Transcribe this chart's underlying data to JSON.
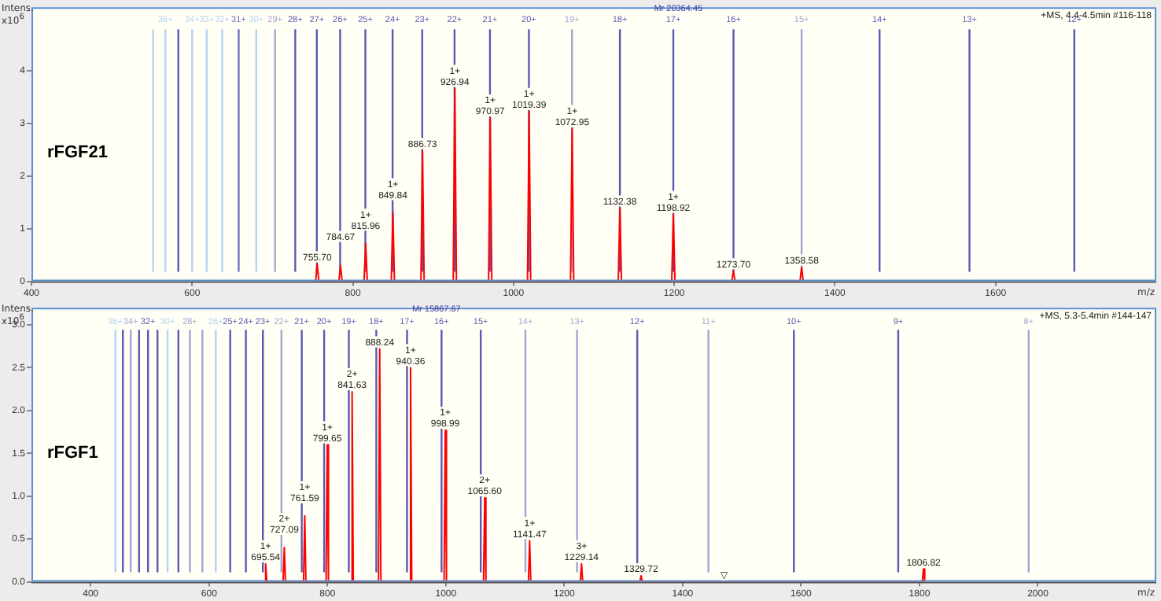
{
  "chart_data": [
    {
      "type": "line",
      "title": "rFGF21",
      "ylabel": "Intens. x10$^{6}$",
      "xlabel": "m/z",
      "xlim": [
        400,
        1800
      ],
      "xticks": [
        400,
        600,
        800,
        1000,
        1200,
        1400,
        1600
      ],
      "ylim": [
        0,
        5.2
      ],
      "yticks": [
        0,
        1,
        2,
        3,
        4
      ],
      "grid": false,
      "legend": false,
      "marker": "none",
      "line_style": "solid",
      "series": [
        {
          "color": "#ff0000",
          "x": [
            753.7,
            755.7,
            757.7,
            782.67,
            784.67,
            786.67,
            813.96,
            815.96,
            817.96,
            847.84,
            849.84,
            851.84,
            884.73,
            886.73,
            888.73,
            924.94,
            926.94,
            928.94,
            968.97,
            970.97,
            972.97,
            1017.39,
            1019.39,
            1021.39,
            1070.95,
            1072.95,
            1074.95,
            1130.38,
            1132.38,
            1134.38,
            1196.92,
            1198.92,
            1200.92,
            1271.7,
            1273.7,
            1275.7,
            1356.58,
            1358.58,
            1360.58
          ],
          "values": [
            0,
            0.33,
            0,
            0,
            0.3,
            0,
            0,
            0.72,
            0,
            0,
            1.3,
            0,
            0,
            2.48,
            0,
            0,
            3.66,
            0,
            0,
            3.1,
            0,
            0,
            3.22,
            0,
            0,
            2.9,
            0,
            0,
            1.39,
            0,
            0,
            1.27,
            0,
            0,
            0.2,
            0,
            0,
            0.27,
            0
          ]
        }
      ],
      "annotations": [
        "+MS, 4.4-4.5min #116-118",
        "Mr 20364.45",
        {
          "text": "755.70",
          "x": 755.7,
          "y": 0.33
        },
        {
          "text": "784.67",
          "x": 784.67,
          "y": 0.3
        },
        {
          "text": "1+\n815.96",
          "x": 815.96,
          "y": 0.72
        },
        {
          "text": "1+\n849.84",
          "x": 849.84,
          "y": 1.3
        },
        {
          "text": "886.73",
          "x": 886.73,
          "y": 2.48
        },
        {
          "text": "1+\n926.94",
          "x": 926.94,
          "y": 3.66
        },
        {
          "text": "1+\n970.97",
          "x": 970.97,
          "y": 3.1
        },
        {
          "text": "1+\n1019.39",
          "x": 1019.39,
          "y": 3.22
        },
        {
          "text": "1+\n1072.95",
          "x": 1072.95,
          "y": 2.9
        },
        {
          "text": "1132.38",
          "x": 1132.38,
          "y": 1.39
        },
        {
          "text": "1+\n1198.92",
          "x": 1198.92,
          "y": 1.27
        },
        {
          "text": "1273.70",
          "x": 1273.7,
          "y": 0.2
        },
        {
          "text": "1358.58",
          "x": 1358.58,
          "y": 0.27
        },
        {
          "text": "36+",
          "x": 566.7,
          "y": 4.85
        },
        {
          "text": "34+",
          "x": 600.0,
          "y": 4.85
        },
        {
          "text": "33+",
          "x": 618.1,
          "y": 4.85
        },
        {
          "text": "32+",
          "x": 637.4,
          "y": 4.85
        },
        {
          "text": "31+",
          "x": 657.9,
          "y": 4.85
        },
        {
          "text": "30+",
          "x": 679.8,
          "y": 4.85
        },
        {
          "text": "29+",
          "x": 703.2,
          "y": 4.85
        },
        {
          "text": "28+",
          "x": 728.3,
          "y": 4.85
        },
        {
          "text": "27+",
          "x": 755.2,
          "y": 4.85
        },
        {
          "text": "26+",
          "x": 784.2,
          "y": 4.85
        },
        {
          "text": "25+",
          "x": 815.6,
          "y": 4.85
        },
        {
          "text": "24+",
          "x": 849.5,
          "y": 4.85
        },
        {
          "text": "23+",
          "x": 886.4,
          "y": 4.85
        },
        {
          "text": "22+",
          "x": 926.6,
          "y": 4.85
        },
        {
          "text": "21+",
          "x": 970.7,
          "y": 4.85
        },
        {
          "text": "20+",
          "x": 1019.2,
          "y": 4.85
        },
        {
          "text": "19+",
          "x": 1072.8,
          "y": 4.85
        },
        {
          "text": "18+",
          "x": 1132.4,
          "y": 4.85
        },
        {
          "text": "17+",
          "x": 1198.9,
          "y": 4.85
        },
        {
          "text": "16+",
          "x": 1273.8,
          "y": 4.85
        },
        {
          "text": "15+",
          "x": 1358.6,
          "y": 4.85
        },
        {
          "text": "14+",
          "x": 1455.6,
          "y": 4.85
        },
        {
          "text": "13+",
          "x": 1567.5,
          "y": 4.85
        },
        {
          "text": "12+",
          "x": 1698.0,
          "y": 4.85
        }
      ],
      "ref_lines": [
        {
          "axis": "x",
          "value": 551.4,
          "color": "#b4d4f2"
        },
        {
          "axis": "x",
          "value": 566.7,
          "color": "#b4d4f2"
        },
        {
          "axis": "x",
          "value": 582.8,
          "color": "#5a5ab4"
        },
        {
          "axis": "x",
          "value": 600.0,
          "color": "#b4d4f2"
        },
        {
          "axis": "x",
          "value": 618.1,
          "color": "#b4d4f2"
        },
        {
          "axis": "x",
          "value": 637.4,
          "color": "#b4d4f2"
        },
        {
          "axis": "x",
          "value": 657.9,
          "color": "#7070c0"
        },
        {
          "axis": "x",
          "value": 679.8,
          "color": "#b4d4f2"
        },
        {
          "axis": "x",
          "value": 703.2,
          "color": "#a4a4d4"
        },
        {
          "axis": "x",
          "value": 728.3,
          "color": "#5a5ab4"
        },
        {
          "axis": "x",
          "value": 755.2,
          "color": "#5a5ab4"
        },
        {
          "axis": "x",
          "value": 784.2,
          "color": "#5a5ab4"
        },
        {
          "axis": "x",
          "value": 815.6,
          "color": "#5a5ab4"
        },
        {
          "axis": "x",
          "value": 849.5,
          "color": "#5a5ab4"
        },
        {
          "axis": "x",
          "value": 886.4,
          "color": "#5a5ab4"
        },
        {
          "axis": "x",
          "value": 926.6,
          "color": "#5a5ab4"
        },
        {
          "axis": "x",
          "value": 970.7,
          "color": "#5a5ab4"
        },
        {
          "axis": "x",
          "value": 1019.2,
          "color": "#5a5ab4"
        },
        {
          "axis": "x",
          "value": 1072.8,
          "color": "#a4a4d4"
        },
        {
          "axis": "x",
          "value": 1132.4,
          "color": "#5a5ab4"
        },
        {
          "axis": "x",
          "value": 1198.9,
          "color": "#5a5ab4"
        },
        {
          "axis": "x",
          "value": 1273.8,
          "color": "#5a5ab4"
        },
        {
          "axis": "x",
          "value": 1358.6,
          "color": "#a4a4d4"
        },
        {
          "axis": "x",
          "value": 1455.6,
          "color": "#5a5ab4"
        },
        {
          "axis": "x",
          "value": 1567.5,
          "color": "#5a5ab4"
        },
        {
          "axis": "x",
          "value": 1698.0,
          "color": "#5a5ab4"
        }
      ]
    },
    {
      "type": "line",
      "title": "rFGF1",
      "ylabel": "Intens. x10$^{6}$",
      "xlabel": "m/z",
      "xlim": [
        300,
        2200
      ],
      "xticks": [
        400,
        600,
        800,
        1000,
        1200,
        1400,
        1600,
        1800,
        2000
      ],
      "ylim": [
        0,
        3.2
      ],
      "yticks": [
        {
          "value": 0,
          "label": "0.0"
        },
        0.5,
        {
          "value": 1,
          "label": "1.0"
        },
        1.5,
        {
          "value": 2,
          "label": "2.0"
        },
        2.5,
        {
          "value": 3,
          "label": "3.0"
        }
      ],
      "grid": false,
      "legend": false,
      "marker": "none",
      "line_style": "solid",
      "series": [
        {
          "color": "#ff0000",
          "x": [
            693.54,
            695.54,
            697.54,
            725.09,
            727.09,
            729.09,
            759.59,
            761.59,
            763.59,
            797.65,
            799.65,
            801.65,
            839.63,
            841.63,
            843.63,
            886.24,
            888.24,
            890.24,
            938.36,
            940.36,
            942.36,
            996.99,
            998.99,
            1000.99,
            1063.6,
            1065.6,
            1067.6,
            1139.47,
            1141.47,
            1143.47,
            1227.14,
            1229.14,
            1231.14,
            1327.72,
            1329.72,
            1331.72,
            1804.82,
            1806.82,
            1808.82
          ],
          "values": [
            0,
            0.21,
            0,
            0,
            0.4,
            0,
            0,
            0.77,
            0,
            0,
            1.6,
            0,
            0,
            2.22,
            0,
            0,
            2.72,
            0,
            0,
            2.5,
            0,
            0,
            1.77,
            0,
            0,
            0.98,
            0,
            0,
            0.48,
            0,
            0,
            0.21,
            0,
            0,
            0.07,
            0,
            0,
            0.15,
            0
          ]
        }
      ],
      "annotations": [
        "+MS, 5.3-5.4min #144-147",
        "Mr 15867.67",
        {
          "text": "1+\n695.54",
          "x": 695.54,
          "y": 0.21
        },
        {
          "text": "2+\n727.09",
          "x": 727.09,
          "y": 0.4
        },
        {
          "text": "1+\n761.59",
          "x": 761.59,
          "y": 0.77
        },
        {
          "text": "1+\n799.65",
          "x": 799.65,
          "y": 1.6
        },
        {
          "text": "2+\n841.63",
          "x": 841.63,
          "y": 2.22
        },
        {
          "text": "888.24",
          "x": 888.24,
          "y": 2.72
        },
        {
          "text": "1+\n940.36",
          "x": 940.36,
          "y": 2.5
        },
        {
          "text": "1+\n998.99",
          "x": 998.99,
          "y": 1.77
        },
        {
          "text": "2+\n1065.60",
          "x": 1065.6,
          "y": 0.98
        },
        {
          "text": "1+\n1141.47",
          "x": 1141.47,
          "y": 0.48
        },
        {
          "text": "3+\n1229.14",
          "x": 1229.14,
          "y": 0.21
        },
        {
          "text": "1329.72",
          "x": 1329.72,
          "y": 0.07
        },
        {
          "text": "1806.82",
          "x": 1806.82,
          "y": 0.15
        },
        {
          "text": "▽",
          "x": 1470,
          "y": 0
        },
        {
          "text": "36+",
          "x": 441.8,
          "y": 2.97
        },
        {
          "text": "34+",
          "x": 467.7,
          "y": 2.97
        },
        {
          "text": "32+",
          "x": 496.9,
          "y": 2.97
        },
        {
          "text": "30+",
          "x": 529.9,
          "y": 2.97
        },
        {
          "text": "28+",
          "x": 567.7,
          "y": 2.97
        },
        {
          "text": "26+",
          "x": 611.3,
          "y": 2.97
        },
        {
          "text": "25+",
          "x": 635.7,
          "y": 2.97
        },
        {
          "text": "24+",
          "x": 662.2,
          "y": 2.97
        },
        {
          "text": "23+",
          "x": 690.9,
          "y": 2.97
        },
        {
          "text": "22+",
          "x": 722.3,
          "y": 2.97
        },
        {
          "text": "21+",
          "x": 756.6,
          "y": 2.97
        },
        {
          "text": "20+",
          "x": 794.4,
          "y": 2.97
        },
        {
          "text": "19+",
          "x": 836.1,
          "y": 2.97
        },
        {
          "text": "18+",
          "x": 882.5,
          "y": 2.97
        },
        {
          "text": "17+",
          "x": 934.4,
          "y": 2.97
        },
        {
          "text": "16+",
          "x": 992.7,
          "y": 2.97
        },
        {
          "text": "15+",
          "x": 1058.9,
          "y": 2.97
        },
        {
          "text": "14+",
          "x": 1134.4,
          "y": 2.97
        },
        {
          "text": "13+",
          "x": 1221.6,
          "y": 2.97
        },
        {
          "text": "12+",
          "x": 1323.3,
          "y": 2.97
        },
        {
          "text": "11+",
          "x": 1443.5,
          "y": 2.97
        },
        {
          "text": "10+",
          "x": 1587.8,
          "y": 2.97
        },
        {
          "text": "9+",
          "x": 1764.1,
          "y": 2.97
        },
        {
          "text": "8+",
          "x": 1984.5,
          "y": 2.97
        }
      ],
      "ref_lines": [
        {
          "axis": "x",
          "value": 441.8,
          "color": "#b4d4f2"
        },
        {
          "axis": "x",
          "value": 454.4,
          "color": "#5a5ab4"
        },
        {
          "axis": "x",
          "value": 467.7,
          "color": "#a4a4d4"
        },
        {
          "axis": "x",
          "value": 481.8,
          "color": "#5a5ab4"
        },
        {
          "axis": "x",
          "value": 496.9,
          "color": "#5a5ab4"
        },
        {
          "axis": "x",
          "value": 512.9,
          "color": "#5a5ab4"
        },
        {
          "axis": "x",
          "value": 529.9,
          "color": "#b4d4f2"
        },
        {
          "axis": "x",
          "value": 548.2,
          "color": "#5a5ab4"
        },
        {
          "axis": "x",
          "value": 567.7,
          "color": "#a4a4d4"
        },
        {
          "axis": "x",
          "value": 588.7,
          "color": "#a4a4d4"
        },
        {
          "axis": "x",
          "value": 611.3,
          "color": "#b4d4f2"
        },
        {
          "axis": "x",
          "value": 635.7,
          "color": "#5a5ab4"
        },
        {
          "axis": "x",
          "value": 662.2,
          "color": "#5a5ab4"
        },
        {
          "axis": "x",
          "value": 690.9,
          "color": "#5a5ab4"
        },
        {
          "axis": "x",
          "value": 722.3,
          "color": "#a4a4d4"
        },
        {
          "axis": "x",
          "value": 756.6,
          "color": "#5a5ab4"
        },
        {
          "axis": "x",
          "value": 794.4,
          "color": "#5a5ab4"
        },
        {
          "axis": "x",
          "value": 836.1,
          "color": "#5a5ab4"
        },
        {
          "axis": "x",
          "value": 882.5,
          "color": "#5a5ab4"
        },
        {
          "axis": "x",
          "value": 934.4,
          "color": "#5a5ab4"
        },
        {
          "axis": "x",
          "value": 992.7,
          "color": "#5a5ab4"
        },
        {
          "axis": "x",
          "value": 1058.9,
          "color": "#5a5ab4"
        },
        {
          "axis": "x",
          "value": 1134.4,
          "color": "#a4a4d4"
        },
        {
          "axis": "x",
          "value": 1221.6,
          "color": "#a4a4d4"
        },
        {
          "axis": "x",
          "value": 1323.3,
          "color": "#5a5ab4"
        },
        {
          "axis": "x",
          "value": 1443.5,
          "color": "#a4a4d4"
        },
        {
          "axis": "x",
          "value": 1587.8,
          "color": "#5a5ab4"
        },
        {
          "axis": "x",
          "value": 1764.1,
          "color": "#5a5ab4"
        },
        {
          "axis": "x",
          "value": 1984.5,
          "color": "#a4a4d4"
        }
      ]
    }
  ]
}
